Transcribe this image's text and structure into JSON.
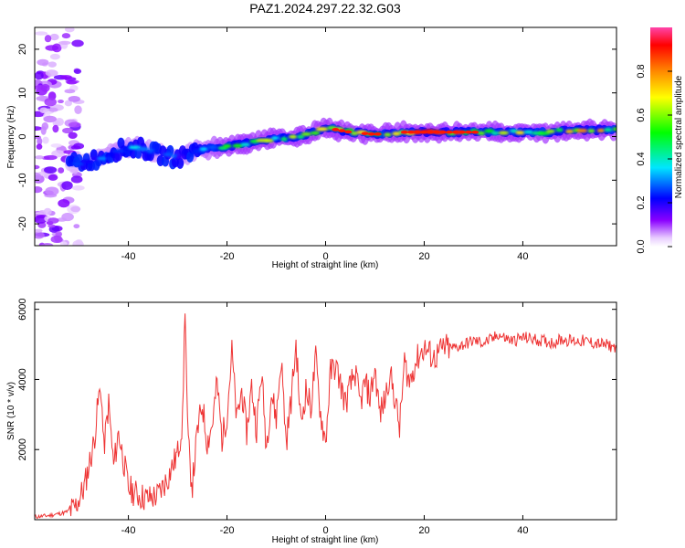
{
  "chart_data": [
    {
      "type": "heatmap",
      "title": "PAZ1.2024.297.22.32.G03",
      "xlabel": "Height of straight line (km)",
      "ylabel": "Frequency (Hz)",
      "xlim": [
        -59,
        59
      ],
      "ylim": [
        -25,
        25
      ],
      "xticks": [
        "-40",
        "-20",
        "0",
        "20",
        "40"
      ],
      "yticks": [
        "-20",
        "-10",
        "0",
        "10",
        "20"
      ],
      "colorbar": {
        "label": "Normalized spectral amplitude",
        "range": [
          0,
          1
        ],
        "ticks": [
          "0.0",
          "0.2",
          "0.4",
          "0.6",
          "0.8"
        ],
        "colors": [
          "#ffffff",
          "#8a00ff",
          "#0000ff",
          "#00e6ff",
          "#00ff00",
          "#ffff00",
          "#ff8800",
          "#ff0000",
          "#ff44aa"
        ]
      },
      "ridge": {
        "description_points_x": [
          -50,
          -46,
          -42,
          -38,
          -34,
          -30,
          -26,
          -22,
          -18,
          -14,
          -10,
          -6,
          -2,
          0,
          5,
          10,
          15,
          20,
          25,
          30,
          35,
          40,
          45,
          50,
          55,
          59
        ],
        "frequency_hz": [
          -6,
          -5,
          -3,
          -2.5,
          -4,
          -5,
          -3,
          -2.5,
          -2,
          -1,
          -0.5,
          0,
          1,
          2,
          1,
          0.5,
          1,
          1,
          1,
          1,
          1,
          1,
          1,
          1.5,
          1.5,
          1.5
        ],
        "amplitude": [
          0.25,
          0.3,
          0.35,
          0.35,
          0.3,
          0.3,
          0.35,
          0.45,
          0.55,
          0.6,
          0.6,
          0.65,
          0.7,
          0.75,
          0.85,
          0.85,
          0.8,
          0.9,
          0.85,
          0.85,
          0.65,
          0.65,
          0.65,
          0.7,
          0.75,
          0.7
        ]
      },
      "grid": false,
      "legend": "none"
    },
    {
      "type": "line",
      "title": "",
      "xlabel": "Height of straight line (km)",
      "ylabel": "SNR (10 * v/v)",
      "xlim": [
        -59,
        59
      ],
      "ylim": [
        0,
        6200
      ],
      "xticks": [
        "-40",
        "-20",
        "0",
        "20",
        "40"
      ],
      "yticks": [
        "2000",
        "4000",
        "6000"
      ],
      "series": [
        {
          "color": "#ee3333",
          "x": [
            -59,
            -56,
            -53,
            -51,
            -49,
            -47,
            -46,
            -45.5,
            -45,
            -44,
            -43,
            -42,
            -40,
            -38,
            -36,
            -34,
            -32,
            -30,
            -29,
            -28.5,
            -28,
            -27.5,
            -27,
            -26,
            -25,
            -24,
            -23,
            -22,
            -21,
            -20,
            -19,
            -18,
            -17,
            -16,
            -15,
            -14,
            -13,
            -12,
            -11,
            -10,
            -9,
            -8,
            -7,
            -6,
            -5,
            -4,
            -3,
            -2,
            -1,
            0,
            1,
            2,
            3,
            4,
            5,
            6,
            7,
            8,
            9,
            10,
            11,
            12,
            13,
            14,
            15,
            16,
            17,
            18,
            19,
            20,
            22,
            24,
            26,
            28,
            30,
            32,
            34,
            35,
            36,
            38,
            40,
            42,
            44,
            46,
            48,
            50,
            52,
            54,
            56,
            58,
            59
          ],
          "y": [
            80,
            120,
            200,
            300,
            900,
            2200,
            3500,
            3700,
            2000,
            3300,
            1500,
            2500,
            900,
            700,
            600,
            700,
            1200,
            1900,
            2800,
            6200,
            2600,
            1500,
            1000,
            2500,
            3300,
            2200,
            2700,
            3900,
            2300,
            3000,
            4800,
            2800,
            3700,
            2500,
            3800,
            2600,
            4200,
            2100,
            3600,
            2900,
            4600,
            2200,
            3400,
            5000,
            2700,
            3700,
            3200,
            4600,
            3000,
            2200,
            4200,
            4400,
            3900,
            3300,
            3800,
            4200,
            3300,
            3900,
            3500,
            4300,
            3000,
            3400,
            4200,
            3500,
            2600,
            4500,
            3900,
            4400,
            4700,
            4900,
            4600,
            4900,
            4900,
            5000,
            5100,
            5050,
            5150,
            5300,
            5200,
            5100,
            5200,
            5150,
            5100,
            5050,
            5150,
            5100,
            5100,
            5050,
            5000,
            4950,
            4900
          ]
        }
      ],
      "grid": false,
      "legend": "none"
    }
  ]
}
